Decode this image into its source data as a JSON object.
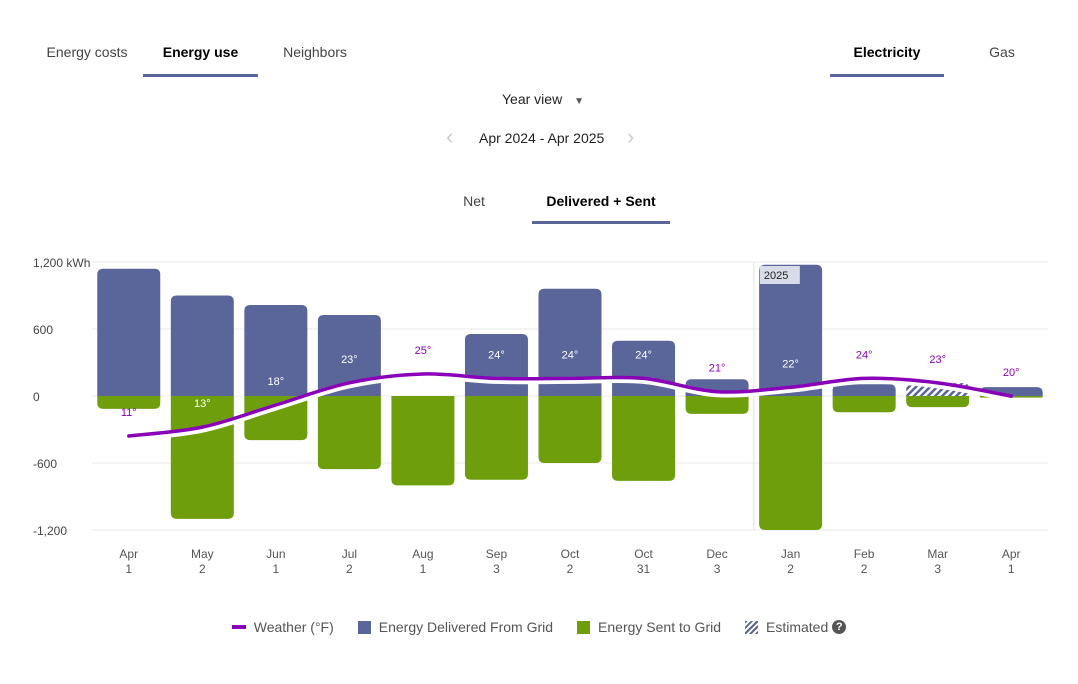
{
  "top_tabs": [
    {
      "label": "Energy costs",
      "active": false
    },
    {
      "label": "Energy use",
      "active": true
    },
    {
      "label": "Neighbors",
      "active": false
    }
  ],
  "fuel_tabs": [
    {
      "label": "Electricity",
      "active": true
    },
    {
      "label": "Gas",
      "active": false
    }
  ],
  "view_select": {
    "value": "Year view"
  },
  "period": {
    "label": "Apr 2024 - Apr 2025"
  },
  "mode_tabs": [
    {
      "label": "Net",
      "active": false
    },
    {
      "label": "Delivered + Sent",
      "active": true
    }
  ],
  "colors": {
    "delivered": "#5a6699",
    "sent": "#6f9e0c",
    "weather": "#8a00b8",
    "accent": "#5a6699"
  },
  "chart_data": {
    "type": "bar",
    "ylabel": "kWh",
    "ylim": [
      -1200,
      1200
    ],
    "yticks": [
      "1,200 kWh",
      "600",
      "0",
      "-600",
      "-1,200"
    ],
    "grid": true,
    "year_marker": "2025",
    "categories": [
      [
        "Apr",
        "1"
      ],
      [
        "May",
        "2"
      ],
      [
        "Jun",
        "1"
      ],
      [
        "Jul",
        "2"
      ],
      [
        "Aug",
        "1"
      ],
      [
        "Sep",
        "3"
      ],
      [
        "Oct",
        "2"
      ],
      [
        "Oct",
        "31"
      ],
      [
        "Dec",
        "3"
      ],
      [
        "Jan",
        "2"
      ],
      [
        "Feb",
        "2"
      ],
      [
        "Mar",
        "3"
      ],
      [
        "Apr",
        "1"
      ]
    ],
    "series": [
      {
        "name": "Energy Delivered From Grid",
        "values": [
          1140,
          900,
          815,
          725,
          0,
          555,
          960,
          495,
          150,
          1175,
          105,
          115,
          80
        ]
      },
      {
        "name": "Energy Sent to Grid",
        "values": [
          -115,
          -1100,
          -395,
          -655,
          -800,
          -750,
          -600,
          -760,
          -160,
          -1200,
          -145,
          -100,
          -15
        ]
      },
      {
        "name": "Weather (°F)",
        "type": "line",
        "values": [
          11,
          13,
          18,
          23,
          25,
          24,
          24,
          24,
          21,
          22,
          24,
          23,
          20
        ],
        "labels": [
          "11°",
          "13°",
          "18°",
          "23°",
          "25°",
          "24°",
          "24°",
          "24°",
          "21°",
          "22°",
          "24°",
          "23°",
          "20°"
        ]
      }
    ],
    "estimated": [
      false,
      false,
      false,
      false,
      false,
      false,
      false,
      false,
      false,
      false,
      false,
      true,
      false
    ],
    "legend": {
      "position": "bottom",
      "items": [
        "Weather (°F)",
        "Energy Delivered From Grid",
        "Energy Sent to Grid",
        "Estimated"
      ]
    }
  }
}
